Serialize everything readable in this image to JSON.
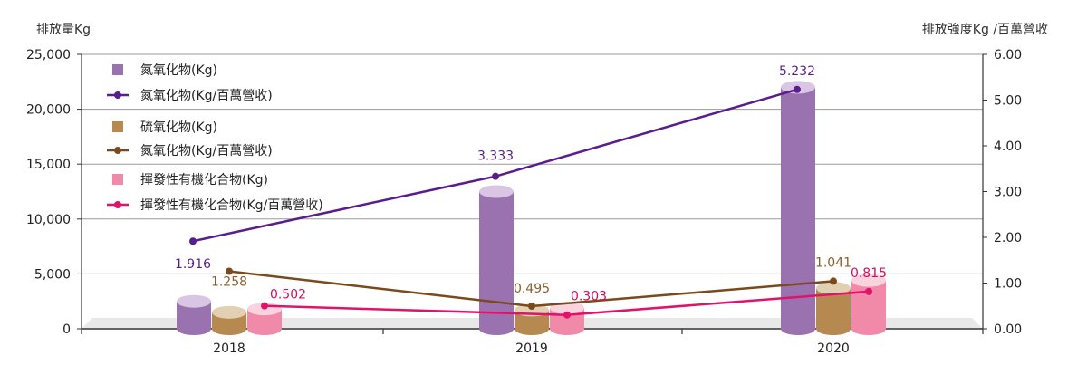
{
  "chart_data": {
    "type": "bar",
    "y_left_label": "排放量Kg",
    "y_right_label": "排放強度Kg /百萬營收",
    "categories": [
      "2018",
      "2019",
      "2020"
    ],
    "y_left_ticks": [
      "0",
      "5,000",
      "10,000",
      "15,000",
      "20,000",
      "25,000"
    ],
    "y_right_ticks": [
      "0.00",
      "1.00",
      "2.00",
      "3.00",
      "4.00",
      "5.00",
      "6.00"
    ],
    "ylim_left": [
      0,
      25000
    ],
    "ylim_right": [
      0,
      6
    ],
    "bar_series": [
      {
        "name": "氮氧化物(Kg)",
        "color": "#9b72b0",
        "top_color": "#d9c6e4",
        "values": [
          2500,
          12500,
          22000
        ]
      },
      {
        "name": "硫氧化物(Kg)",
        "color": "#b5894f",
        "top_color": "#e3cfb2",
        "values": [
          1500,
          1700,
          3700
        ]
      },
      {
        "name": "揮發性有機化合物(Kg)",
        "color": "#f08aa8",
        "top_color": "#fbd3df",
        "values": [
          1800,
          1900,
          4400
        ]
      }
    ],
    "line_series": [
      {
        "name": "氮氧化物(Kg/百萬營收)",
        "color": "#5a1e8c",
        "values": [
          1.916,
          3.333,
          5.232
        ],
        "labels": [
          "1.916",
          "3.333",
          "5.232"
        ]
      },
      {
        "name": "氮氧化物(Kg/百萬營收)",
        "color": "#7a4a1c",
        "values": [
          1.258,
          0.495,
          1.041
        ],
        "labels": [
          "1.258",
          "0.495",
          "1.041"
        ]
      },
      {
        "name": "揮發性有機化合物(Kg/百萬營收)",
        "color": "#e0136a",
        "values": [
          0.502,
          0.303,
          0.815
        ],
        "labels": [
          "0.502",
          "0.303",
          "0.815"
        ]
      }
    ],
    "label_colors": [
      "#5a1e8c",
      "#8b5e2b",
      "#d0105e"
    ],
    "legend_position": "top-left",
    "grid": true
  }
}
